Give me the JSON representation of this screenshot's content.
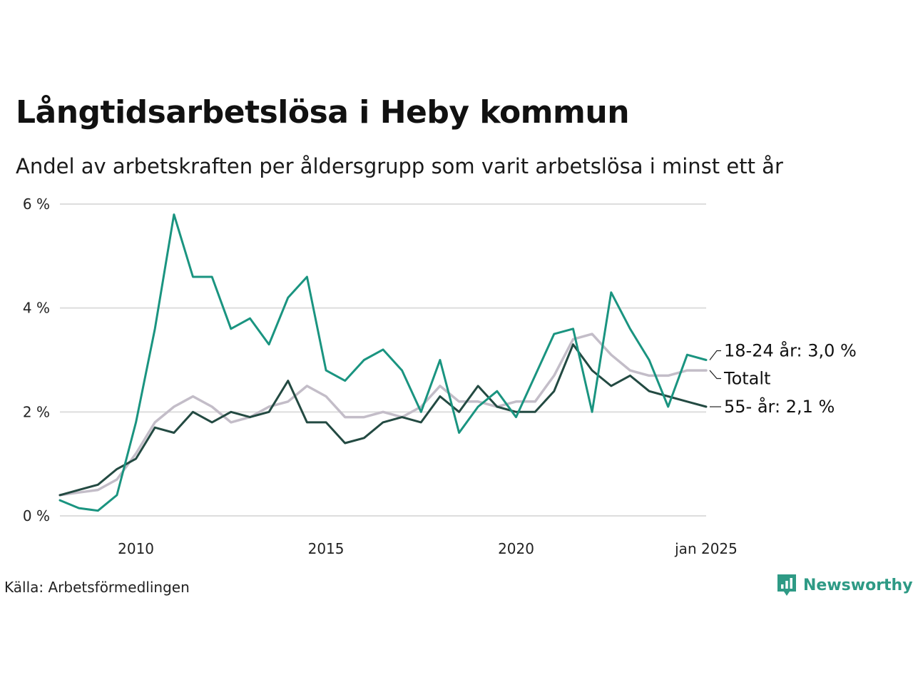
{
  "header": {
    "title": "Långtidsarbetslösa i Heby kommun",
    "subtitle": "Andel av arbetskraften per åldersgrupp som varit arbetslösa i minst ett år"
  },
  "footer": {
    "source": "Källa: Arbetsförmedlingen",
    "brand": "Newsworthy"
  },
  "colors": {
    "youth": "#1a9480",
    "total": "#c3bdc8",
    "senior": "#234a42",
    "grid": "#dddddd",
    "brand": "#2e9a85"
  },
  "icons": {
    "brand_logo": "bar-chart-speech-bubble-icon"
  },
  "chart_data": {
    "type": "line",
    "x_range": [
      "2008-01",
      "2025-01"
    ],
    "ylim": [
      0,
      6
    ],
    "y_ticks": [
      {
        "value": 0,
        "label": "0 %"
      },
      {
        "value": 2,
        "label": "2 %"
      },
      {
        "value": 4,
        "label": "4 %"
      },
      {
        "value": 6,
        "label": "6 %"
      }
    ],
    "x_ticks": [
      {
        "value": "2010-01",
        "label": "2010"
      },
      {
        "value": "2015-01",
        "label": "2015"
      },
      {
        "value": "2020-01",
        "label": "2020"
      },
      {
        "value": "2025-01",
        "label": "jan 2025"
      }
    ],
    "grid": true,
    "series": [
      {
        "key": "total",
        "end_label": "Totalt",
        "points": [
          [
            "2008-01",
            0.4
          ],
          [
            "2008-07",
            0.45
          ],
          [
            "2009-01",
            0.5
          ],
          [
            "2009-07",
            0.7
          ],
          [
            "2010-01",
            1.2
          ],
          [
            "2010-07",
            1.8
          ],
          [
            "2011-01",
            2.1
          ],
          [
            "2011-07",
            2.3
          ],
          [
            "2012-01",
            2.1
          ],
          [
            "2012-07",
            1.8
          ],
          [
            "2013-01",
            1.9
          ],
          [
            "2013-07",
            2.1
          ],
          [
            "2014-01",
            2.2
          ],
          [
            "2014-07",
            2.5
          ],
          [
            "2015-01",
            2.3
          ],
          [
            "2015-07",
            1.9
          ],
          [
            "2016-01",
            1.9
          ],
          [
            "2016-07",
            2.0
          ],
          [
            "2017-01",
            1.9
          ],
          [
            "2017-07",
            2.1
          ],
          [
            "2018-01",
            2.5
          ],
          [
            "2018-07",
            2.2
          ],
          [
            "2019-01",
            2.2
          ],
          [
            "2019-07",
            2.1
          ],
          [
            "2020-01",
            2.2
          ],
          [
            "2020-07",
            2.2
          ],
          [
            "2021-01",
            2.7
          ],
          [
            "2021-07",
            3.4
          ],
          [
            "2022-01",
            3.5
          ],
          [
            "2022-07",
            3.1
          ],
          [
            "2023-01",
            2.8
          ],
          [
            "2023-07",
            2.7
          ],
          [
            "2024-01",
            2.7
          ],
          [
            "2024-07",
            2.8
          ],
          [
            "2025-01",
            2.8
          ]
        ]
      },
      {
        "key": "senior",
        "end_label": "55- år: 2,1 %",
        "points": [
          [
            "2008-01",
            0.4
          ],
          [
            "2008-07",
            0.5
          ],
          [
            "2009-01",
            0.6
          ],
          [
            "2009-07",
            0.9
          ],
          [
            "2010-01",
            1.1
          ],
          [
            "2010-07",
            1.7
          ],
          [
            "2011-01",
            1.6
          ],
          [
            "2011-07",
            2.0
          ],
          [
            "2012-01",
            1.8
          ],
          [
            "2012-07",
            2.0
          ],
          [
            "2013-01",
            1.9
          ],
          [
            "2013-07",
            2.0
          ],
          [
            "2014-01",
            2.6
          ],
          [
            "2014-07",
            1.8
          ],
          [
            "2015-01",
            1.8
          ],
          [
            "2015-07",
            1.4
          ],
          [
            "2016-01",
            1.5
          ],
          [
            "2016-07",
            1.8
          ],
          [
            "2017-01",
            1.9
          ],
          [
            "2017-07",
            1.8
          ],
          [
            "2018-01",
            2.3
          ],
          [
            "2018-07",
            2.0
          ],
          [
            "2019-01",
            2.5
          ],
          [
            "2019-07",
            2.1
          ],
          [
            "2020-01",
            2.0
          ],
          [
            "2020-07",
            2.0
          ],
          [
            "2021-01",
            2.4
          ],
          [
            "2021-07",
            3.3
          ],
          [
            "2022-01",
            2.8
          ],
          [
            "2022-07",
            2.5
          ],
          [
            "2023-01",
            2.7
          ],
          [
            "2023-07",
            2.4
          ],
          [
            "2024-01",
            2.3
          ],
          [
            "2024-07",
            2.2
          ],
          [
            "2025-01",
            2.1
          ]
        ]
      },
      {
        "key": "youth",
        "end_label": "18-24 år: 3,0 %",
        "points": [
          [
            "2008-01",
            0.3
          ],
          [
            "2008-07",
            0.15
          ],
          [
            "2009-01",
            0.1
          ],
          [
            "2009-07",
            0.4
          ],
          [
            "2010-01",
            1.8
          ],
          [
            "2010-07",
            3.6
          ],
          [
            "2011-01",
            5.8
          ],
          [
            "2011-07",
            4.6
          ],
          [
            "2012-01",
            4.6
          ],
          [
            "2012-07",
            3.6
          ],
          [
            "2013-01",
            3.8
          ],
          [
            "2013-07",
            3.3
          ],
          [
            "2014-01",
            4.2
          ],
          [
            "2014-07",
            4.6
          ],
          [
            "2015-01",
            2.8
          ],
          [
            "2015-07",
            2.6
          ],
          [
            "2016-01",
            3.0
          ],
          [
            "2016-07",
            3.2
          ],
          [
            "2017-01",
            2.8
          ],
          [
            "2017-07",
            2.0
          ],
          [
            "2018-01",
            3.0
          ],
          [
            "2018-07",
            1.6
          ],
          [
            "2019-01",
            2.1
          ],
          [
            "2019-07",
            2.4
          ],
          [
            "2020-01",
            1.9
          ],
          [
            "2020-07",
            2.7
          ],
          [
            "2021-01",
            3.5
          ],
          [
            "2021-07",
            3.6
          ],
          [
            "2022-01",
            2.0
          ],
          [
            "2022-07",
            4.3
          ],
          [
            "2023-01",
            3.6
          ],
          [
            "2023-07",
            3.0
          ],
          [
            "2024-01",
            2.1
          ],
          [
            "2024-07",
            3.1
          ],
          [
            "2025-01",
            3.0
          ]
        ]
      }
    ]
  }
}
